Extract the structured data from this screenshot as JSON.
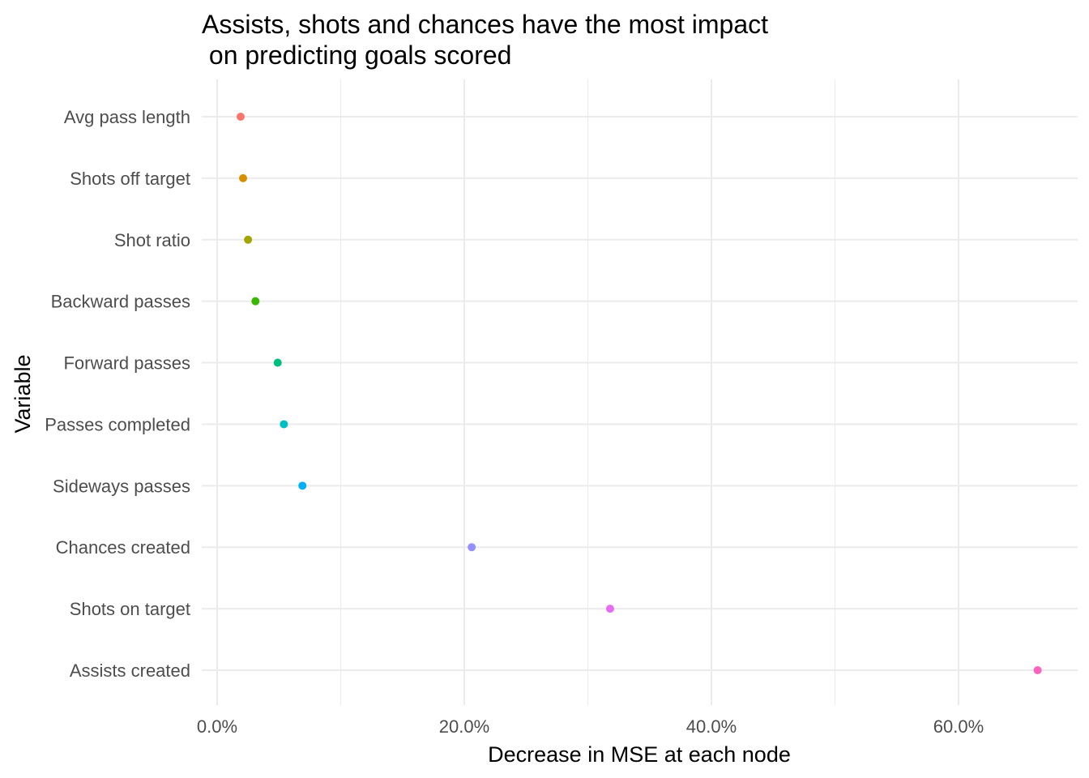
{
  "chart_data": {
    "type": "scatter",
    "title_line1": "Assists, shots and chances have the most impact",
    "title_line2": " on predicting goals scored",
    "xlabel": "Decrease in MSE at each node",
    "ylabel": "Variable",
    "xlim": [
      -0.012,
      0.695
    ],
    "x_ticks": [
      {
        "value": 0.0,
        "label": "0.0%"
      },
      {
        "value": 0.2,
        "label": "20.0%"
      },
      {
        "value": 0.4,
        "label": "40.0%"
      },
      {
        "value": 0.6,
        "label": "60.0%"
      }
    ],
    "x_minor_ticks": [
      0.1,
      0.3,
      0.5
    ],
    "grid": true,
    "legend": "none",
    "points": [
      {
        "category": "Avg pass length",
        "value": 0.019,
        "color": "#F8766D"
      },
      {
        "category": "Shots off target",
        "value": 0.021,
        "color": "#D89000"
      },
      {
        "category": "Shot ratio",
        "value": 0.025,
        "color": "#A3A500"
      },
      {
        "category": "Backward passes",
        "value": 0.031,
        "color": "#39B600"
      },
      {
        "category": "Forward passes",
        "value": 0.049,
        "color": "#00BF7D"
      },
      {
        "category": "Passes completed",
        "value": 0.054,
        "color": "#00BFC4"
      },
      {
        "category": "Sideways passes",
        "value": 0.069,
        "color": "#00B0F6"
      },
      {
        "category": "Chances created",
        "value": 0.206,
        "color": "#9590FF"
      },
      {
        "category": "Shots on target",
        "value": 0.318,
        "color": "#E76BF3"
      },
      {
        "category": "Assists created",
        "value": 0.664,
        "color": "#FF62BC"
      }
    ]
  }
}
